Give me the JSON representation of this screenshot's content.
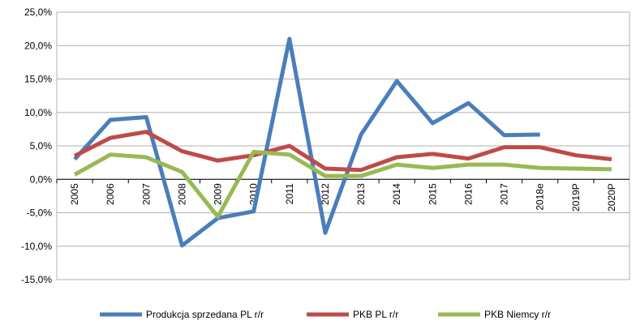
{
  "chart_data": {
    "type": "line",
    "categories": [
      "2005",
      "2006",
      "2007",
      "2008",
      "2009",
      "2010",
      "2011",
      "2012",
      "2013",
      "2014",
      "2015",
      "2016",
      "2017",
      "2018e",
      "2019P",
      "2020P"
    ],
    "series": [
      {
        "name": "Produkcja sprzedana PL r/r",
        "color": "#4a7ebb",
        "values": [
          3.0,
          8.9,
          9.3,
          -9.9,
          -5.8,
          -4.8,
          21.0,
          -8.0,
          6.7,
          14.7,
          8.4,
          11.4,
          6.6,
          6.7,
          null,
          null
        ]
      },
      {
        "name": "PKB PL r/r",
        "color": "#be4b48",
        "values": [
          3.5,
          6.2,
          7.1,
          4.2,
          2.8,
          3.6,
          5.0,
          1.6,
          1.4,
          3.3,
          3.8,
          3.1,
          4.8,
          4.8,
          3.6,
          3.0
        ]
      },
      {
        "name": "PKB Niemcy r/r",
        "color": "#98b954",
        "values": [
          0.7,
          3.7,
          3.3,
          1.1,
          -5.6,
          4.1,
          3.7,
          0.5,
          0.5,
          2.2,
          1.7,
          2.2,
          2.2,
          1.7,
          1.6,
          1.5
        ]
      }
    ],
    "ylim": [
      -15,
      25
    ],
    "yticks": [
      {
        "value": -15,
        "label": "-15,0%"
      },
      {
        "value": -10,
        "label": "-10,0%"
      },
      {
        "value": -5,
        "label": "-5,0%"
      },
      {
        "value": 0,
        "label": "0,0%"
      },
      {
        "value": 5,
        "label": "5,0%"
      },
      {
        "value": 10,
        "label": "10,0%"
      },
      {
        "value": 15,
        "label": "15,0%"
      },
      {
        "value": 20,
        "label": "20,0%"
      },
      {
        "value": 25,
        "label": "25,0%"
      }
    ],
    "grid": true,
    "legend": "bottom"
  }
}
